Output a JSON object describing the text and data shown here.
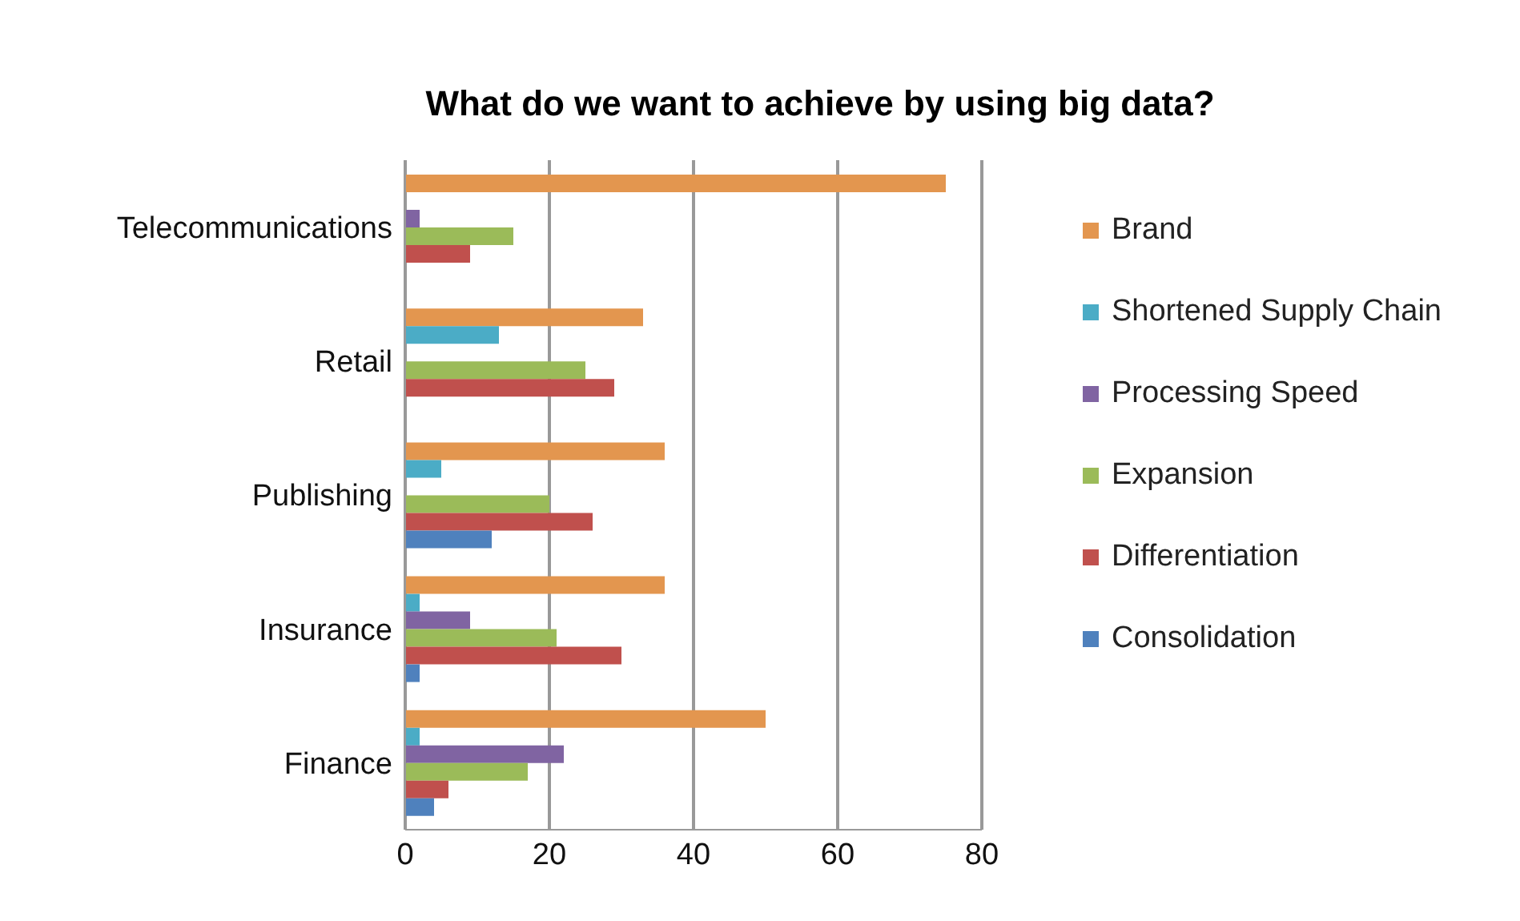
{
  "chart_data": {
    "type": "bar",
    "orientation": "horizontal",
    "title": "What do we want to achieve by using big data?",
    "categories": [
      "Telecommunications",
      "Retail",
      "Publishing",
      "Insurance",
      "Finance"
    ],
    "series": [
      {
        "name": "Brand",
        "color": "#e3964f",
        "values": [
          75,
          33,
          36,
          36,
          50
        ]
      },
      {
        "name": "Shortened Supply Chain",
        "color": "#4bacc6",
        "values": [
          null,
          13,
          5,
          2,
          2
        ]
      },
      {
        "name": "Processing Speed",
        "color": "#8064a2",
        "values": [
          2,
          null,
          null,
          9,
          22
        ]
      },
      {
        "name": "Expansion",
        "color": "#9bbb59",
        "values": [
          15,
          25,
          20,
          21,
          17
        ]
      },
      {
        "name": "Differentiation",
        "color": "#c0504d",
        "values": [
          9,
          29,
          26,
          30,
          6
        ]
      },
      {
        "name": "Consolidation",
        "color": "#4f81bd",
        "values": [
          null,
          null,
          12,
          2,
          4
        ]
      }
    ],
    "xlim": [
      0,
      80
    ],
    "xticks": [
      0,
      20,
      40,
      60,
      80
    ],
    "grid": "x",
    "legend": "right"
  }
}
